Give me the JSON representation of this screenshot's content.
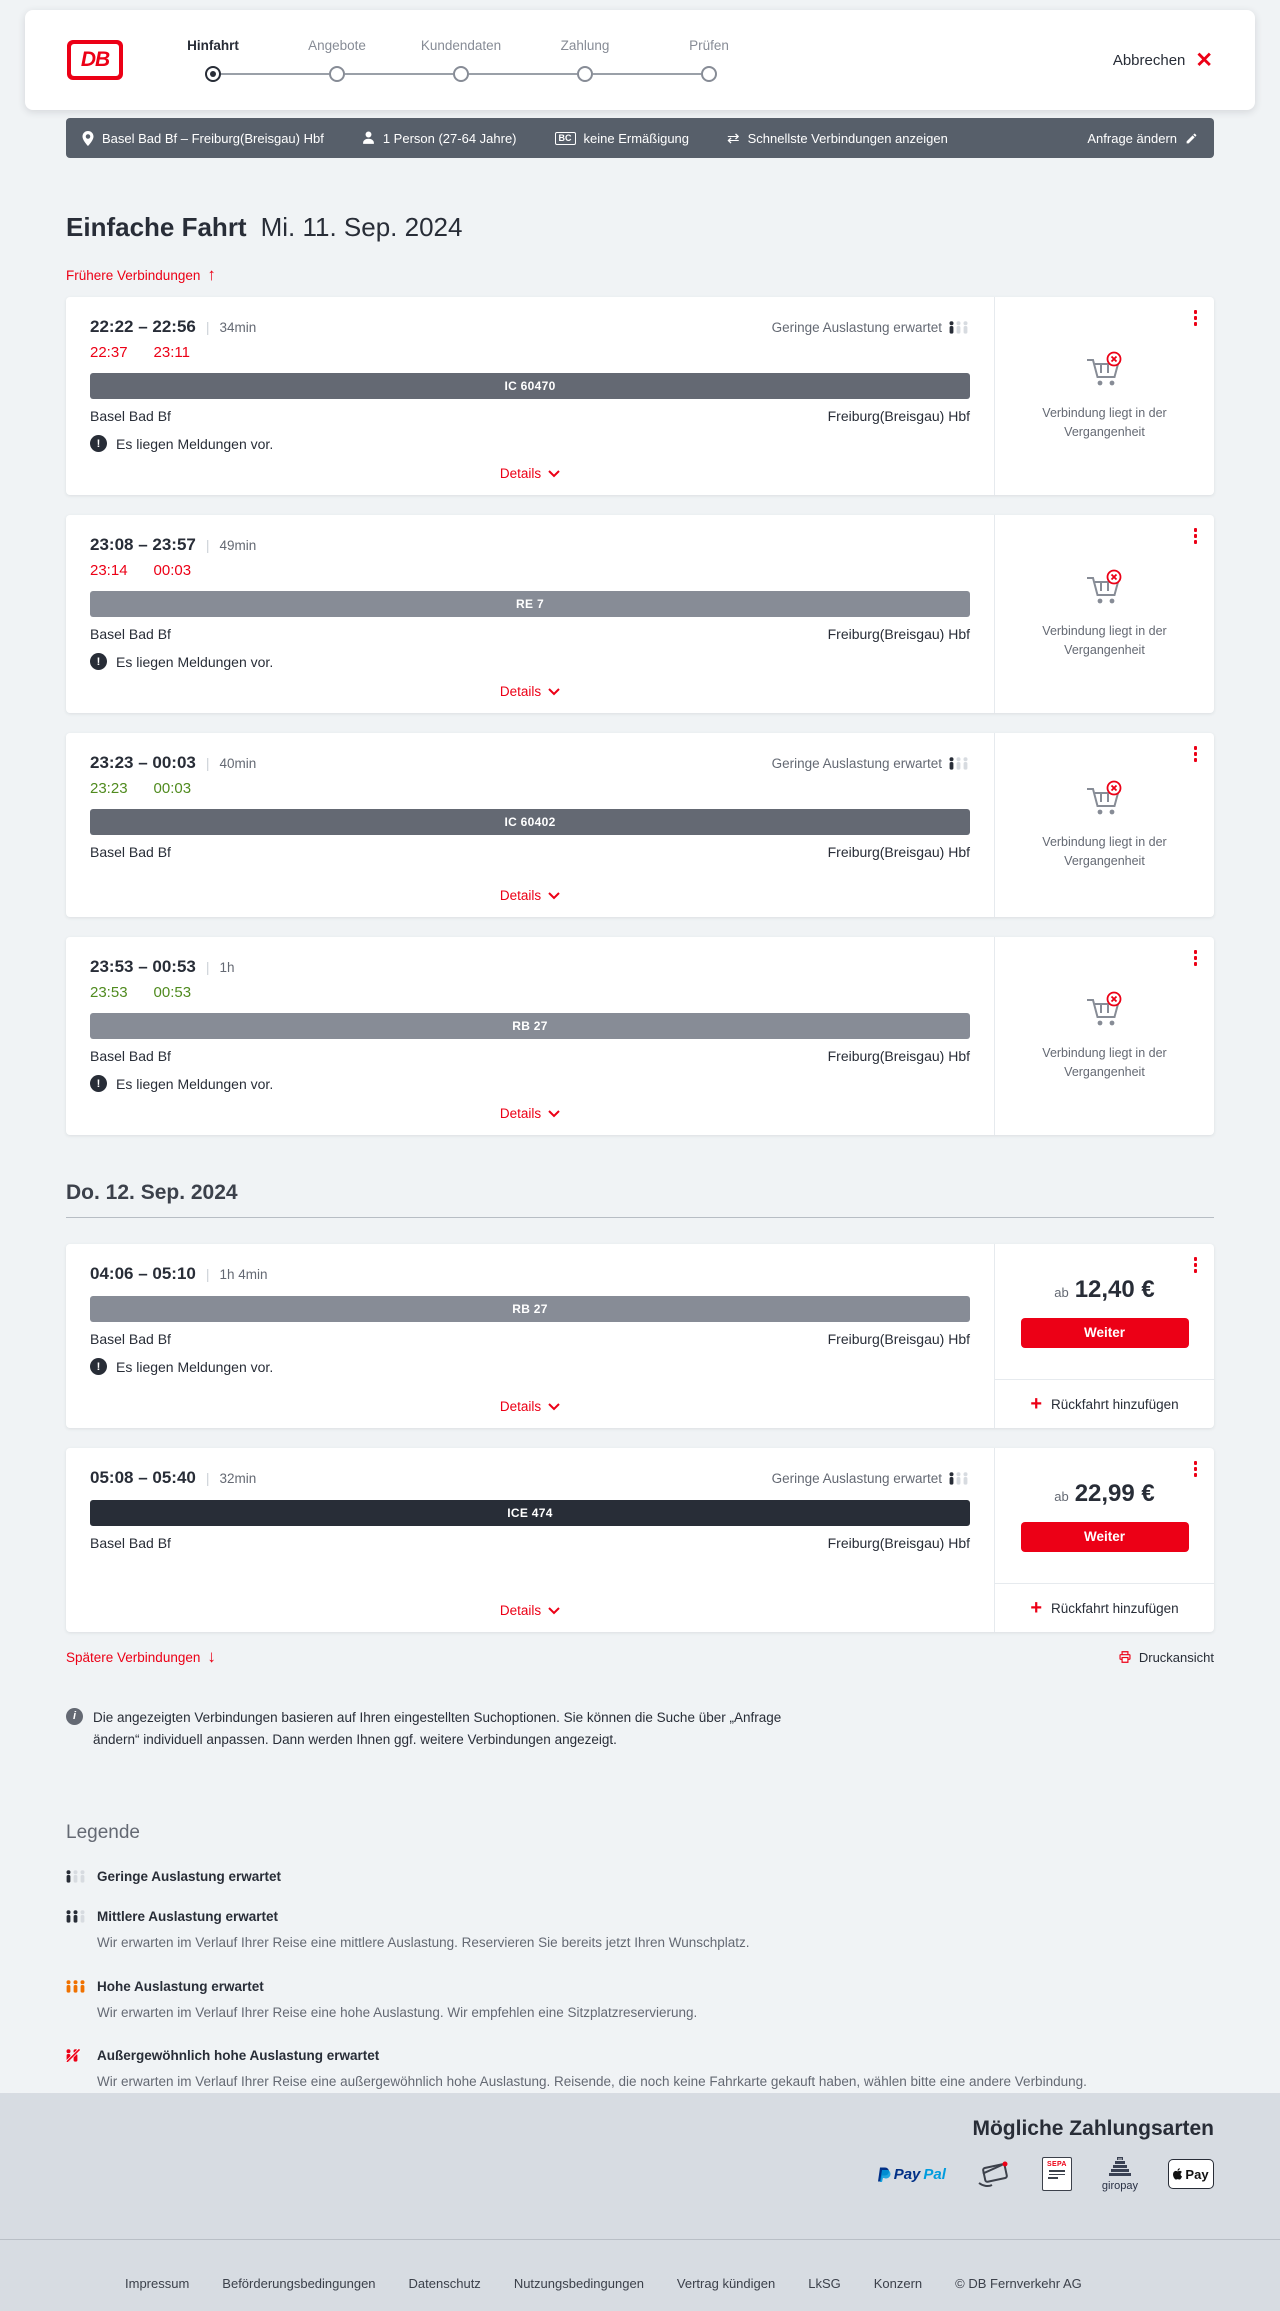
{
  "colors": {
    "accent_red": "#ec0016",
    "dark_text": "#282d37",
    "gray_text": "#646973",
    "bar_dark": "#575f6a",
    "ontime_green": "#508b1f",
    "train_ic": "#646973",
    "train_regional": "#878c96",
    "train_ice": "#282d37",
    "occupancy_low_inactive": "#d7dbe0",
    "occupancy_high_orange": "#ef7100"
  },
  "header": {
    "logo_text": "DB",
    "steps": [
      {
        "label": "Hinfahrt",
        "active": true
      },
      {
        "label": "Angebote",
        "active": false
      },
      {
        "label": "Kundendaten",
        "active": false
      },
      {
        "label": "Zahlung",
        "active": false
      },
      {
        "label": "Prüfen",
        "active": false
      }
    ],
    "cancel_label": "Abbrechen",
    "cancel_icon": "✕"
  },
  "search_summary": {
    "route": "Basel Bad Bf – Freiburg(Breisgau) Hbf",
    "passengers": "1 Person (27-64 Jahre)",
    "bahncard_badge": "BC",
    "discount": "keine Ermäßigung",
    "sort_option": "Schnellste Verbindungen anzeigen",
    "swap_icon": "⇄",
    "edit_label": "Anfrage ändern"
  },
  "results": {
    "title": "Einfache Fahrt",
    "date": "Mi. 11. Sep. 2024",
    "earlier_label": "Frühere Verbindungen",
    "earlier_arrow": "↑",
    "later_label": "Spätere Verbindungen",
    "later_arrow": "↓",
    "print_label": "Druckansicht",
    "day2_heading": "Do. 12. Sep. 2024",
    "details_label": "Details",
    "weiter_label": "Weiter",
    "price_prefix": "ab",
    "add_return_label": "Rückfahrt hinzufügen",
    "past_message": "Verbindung liegt in der Vergangenheit",
    "notice_text": "Es liegen Meldungen vor.",
    "occupancy_low_text": "Geringe Auslastung erwartet",
    "info_text": "Die angezeigten Verbindungen basieren auf Ihren eingestellten Suchoptionen. Sie können die Suche über „Anfrage ändern“ individuell anpassen. Dann werden Ihnen ggf. weitere Verbindungen angezeigt."
  },
  "connections_day1": [
    {
      "time": "22:22 – 22:56",
      "duration": "34min",
      "occupancy": "Geringe Auslastung erwartet",
      "real_times": {
        "dep": "22:37",
        "arr": "23:11",
        "status": "delayed"
      },
      "train": {
        "label": "IC 60470",
        "color": "#646973"
      },
      "from": "Basel Bad Bf",
      "to": "Freiburg(Breisgau) Hbf",
      "notice": "Es liegen Meldungen vor.",
      "side": {
        "type": "past"
      }
    },
    {
      "time": "23:08 – 23:57",
      "duration": "49min",
      "occupancy": null,
      "real_times": {
        "dep": "23:14",
        "arr": "00:03",
        "status": "delayed"
      },
      "train": {
        "label": "RE 7",
        "color": "#878c96"
      },
      "from": "Basel Bad Bf",
      "to": "Freiburg(Breisgau) Hbf",
      "notice": "Es liegen Meldungen vor.",
      "side": {
        "type": "past"
      }
    },
    {
      "time": "23:23 – 00:03",
      "duration": "40min",
      "occupancy": "Geringe Auslastung erwartet",
      "real_times": {
        "dep": "23:23",
        "arr": "00:03",
        "status": "ontime"
      },
      "train": {
        "label": "IC 60402",
        "color": "#646973"
      },
      "from": "Basel Bad Bf",
      "to": "Freiburg(Breisgau) Hbf",
      "notice": null,
      "side": {
        "type": "past"
      }
    },
    {
      "time": "23:53 – 00:53",
      "duration": "1h",
      "occupancy": null,
      "real_times": {
        "dep": "23:53",
        "arr": "00:53",
        "status": "ontime"
      },
      "train": {
        "label": "RB 27",
        "color": "#878c96"
      },
      "from": "Basel Bad Bf",
      "to": "Freiburg(Breisgau) Hbf",
      "notice": "Es liegen Meldungen vor.",
      "side": {
        "type": "past"
      }
    }
  ],
  "connections_day2": [
    {
      "time": "04:06 – 05:10",
      "duration": "1h 4min",
      "occupancy": null,
      "real_times": null,
      "train": {
        "label": "RB 27",
        "color": "#878c96"
      },
      "from": "Basel Bad Bf",
      "to": "Freiburg(Breisgau) Hbf",
      "notice": "Es liegen Meldungen vor.",
      "side": {
        "type": "price",
        "price": "12,40 €"
      }
    },
    {
      "time": "05:08 – 05:40",
      "duration": "32min",
      "occupancy": "Geringe Auslastung erwartet",
      "real_times": null,
      "train": {
        "label": "ICE 474",
        "color": "#282d37"
      },
      "from": "Basel Bad Bf",
      "to": "Freiburg(Breisgau) Hbf",
      "notice": null,
      "side": {
        "type": "price",
        "price": "22,99 €"
      }
    }
  ],
  "legend": {
    "title": "Legende",
    "items": [
      {
        "title": "Geringe Auslastung erwartet",
        "desc": ""
      },
      {
        "title": "Mittlere Auslastung erwartet",
        "desc": "Wir erwarten im Verlauf Ihrer Reise eine mittlere Auslastung. Reservieren Sie bereits jetzt Ihren Wunschplatz."
      },
      {
        "title": "Hohe Auslastung erwartet",
        "desc": "Wir erwarten im Verlauf Ihrer Reise eine hohe Auslastung. Wir empfehlen eine Sitzplatzreservierung."
      },
      {
        "title": "Außergewöhnlich hohe Auslastung erwartet",
        "desc": "Wir erwarten im Verlauf Ihrer Reise eine außergewöhnlich hohe Auslastung. Reisende, die noch keine Fahrkarte gekauft haben, wählen bitte eine andere Verbindung."
      }
    ]
  },
  "payment": {
    "title": "Mögliche Zahlungsarten",
    "paypal": {
      "part1": "Pay",
      "part2": "Pal"
    },
    "sepa_label": "SEPA",
    "giropay_label": "giropay",
    "applepay_label": "Pay",
    "methods": [
      "PayPal",
      "Kreditkarte",
      "SEPA-Lastschrift",
      "giropay",
      "Apple Pay"
    ]
  },
  "footer": {
    "links": [
      "Impressum",
      "Beförderungsbedingungen",
      "Datenschutz",
      "Nutzungsbedingungen",
      "Vertrag kündigen",
      "LkSG",
      "Konzern",
      "© DB Fernverkehr AG"
    ]
  }
}
